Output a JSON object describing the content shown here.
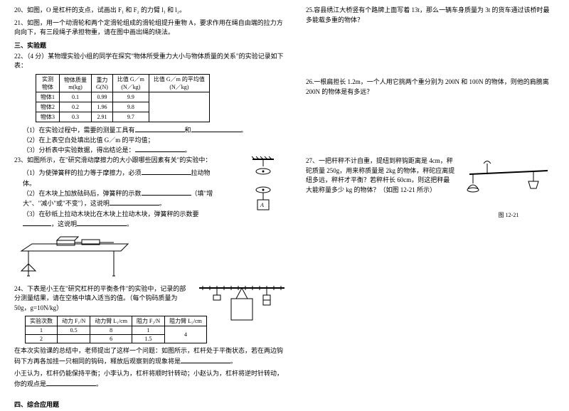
{
  "q20": "20、如图，O 是杠杆的支点，试画出 F₁ 和 F₂ 的力臂 l₁ 和 l₂。",
  "q21": "21、如图，用一个动滑轮和两个定滑轮组成的滑轮组提升重物 A，要求作用在绳自由端的拉力方向向下，有三段绳子承担物重，请在图中画出绳的绕法。",
  "s3": "三、实验题",
  "q22": "22、（4 分）某物理实验小组的同学在探究\"物体所受重力大小与物体质量的关系\"的实验记录如下表：",
  "t1": {
    "h": [
      "实测\n物体",
      "物体质量\nm(kg)",
      "重力\nG(N)",
      "比值 G／m\n(N／kg)",
      "比值 G／m 的平均值\n(N／kg)"
    ],
    "r": [
      [
        "物体1",
        "0.1",
        "0.99",
        "9.9",
        ""
      ],
      [
        "物体2",
        "0.2",
        "1.96",
        "9.8",
        ""
      ],
      [
        "物体3",
        "0.3",
        "2.91",
        "9.7",
        ""
      ]
    ]
  },
  "q22_1": "（1）在实验过程中，需要的测量工具有",
  "q22_1b": "和",
  "q22_2": "（2）在上表空白处填出比值 G／m 的平均值；",
  "q22_3": "（3）分析表中实验数据，得出结论是：",
  "q23": "23、如图所示，在\"研究滑动摩擦力的大小跟哪些因素有关\"的实验中：",
  "q23_1": "（1）为使弹簧秤的拉力等于摩擦力，必须",
  "q23_1b": "拉动物体。",
  "q23_2": "（2）在木块上加放砝码后，弹簧秤的示数",
  "q23_2b": "（填\"增大\"、\"减小\"或\"不变\"），这说明",
  "q23_3": "（3）在砂纸上拉动木块比在木块上拉动木块，弹簧秤的示数要",
  "q23_3b": "，这说明",
  "q24": "24、下表是小王在\"研究杠杆的平衡条件\"的实验中，记录的部分测量结果，请在空格中填入适当的值。（每个钩码质量为50g，g=10N/kg）",
  "t2": {
    "h": [
      "实验次数",
      "动力 F₁/N",
      "动力臂 L₁/cm",
      "阻力 F₂/N",
      "阻力臂 L₂/cm"
    ],
    "r": [
      [
        "1",
        "0.5",
        "8",
        "1",
        "4"
      ],
      [
        "2",
        "",
        "6",
        "1.5",
        "8"
      ]
    ]
  },
  "q24b": "在本次实验课的总结中，老师提出了这样一个问题：如图所示，杠杆处于平衡状态，若在两边钩码下方再各加挂一只相同的钩码，释放后观察到的现象将是",
  "q24c": "小王认为，杠杆仍能保持平衡；小李认为，杠杆将顺时针转动；小赵认为，杠杆将逆时针转动，你的观点是",
  "s4": "四、综合应用题",
  "q25": "25.容县绣江大桥竖有个路牌上面写着 13t，那么一辆车身质量为 3t 的货车通过该桥时最多能载多重的物体？",
  "q26": "26.一根扁担长 1.2m，一个人用它挑两个重分别为 200N 和 100N 的物体，则他的肩膀离 200N 的物体是有多远？",
  "q27": "27、一把杆秤不计自重，提纽到秤钩距离是 4cm，秤砣质量 250g，用来称质量是 2kg 的物体，秤砣应离提纽多远，秤杆才平衡？若秤杆长 60cm，则这把秤最大能称量多少 kg 的物体？（如图 12-21 所示）",
  "fig_label": "图 12-21"
}
